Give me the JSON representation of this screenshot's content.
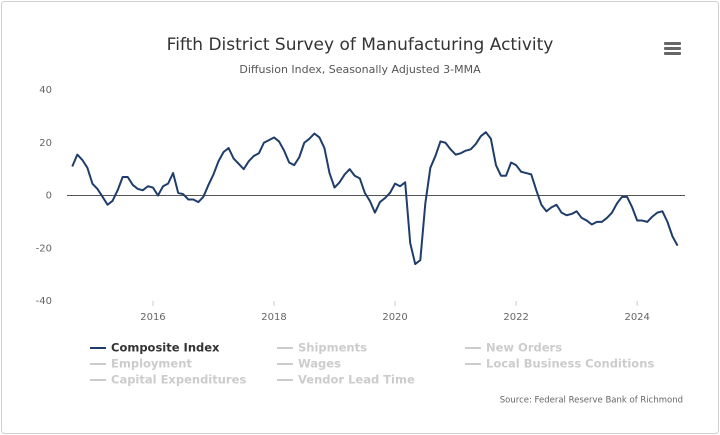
{
  "chart_data": {
    "type": "line",
    "title": "Fifth District Survey of Manufacturing Activity",
    "subtitle": "Diffusion Index, Seasonally Adjusted 3-MMA",
    "source": "Source: Federal Reserve Bank of Richmond",
    "x": [
      2014.667,
      2014.75,
      2014.833,
      2014.917,
      2015,
      2015.083,
      2015.167,
      2015.25,
      2015.333,
      2015.417,
      2015.5,
      2015.583,
      2015.667,
      2015.75,
      2015.833,
      2015.917,
      2016,
      2016.083,
      2016.167,
      2016.25,
      2016.333,
      2016.417,
      2016.5,
      2016.583,
      2016.667,
      2016.75,
      2016.833,
      2016.917,
      2017,
      2017.083,
      2017.167,
      2017.25,
      2017.333,
      2017.417,
      2017.5,
      2017.583,
      2017.667,
      2017.75,
      2017.833,
      2017.917,
      2018,
      2018.083,
      2018.167,
      2018.25,
      2018.333,
      2018.417,
      2018.5,
      2018.583,
      2018.667,
      2018.75,
      2018.833,
      2018.917,
      2019,
      2019.083,
      2019.167,
      2019.25,
      2019.333,
      2019.417,
      2019.5,
      2019.583,
      2019.667,
      2019.75,
      2019.833,
      2019.917,
      2020,
      2020.083,
      2020.167,
      2020.25,
      2020.333,
      2020.417,
      2020.5,
      2020.583,
      2020.667,
      2020.75,
      2020.833,
      2020.917,
      2021,
      2021.083,
      2021.167,
      2021.25,
      2021.333,
      2021.417,
      2021.5,
      2021.583,
      2021.667,
      2021.75,
      2021.833,
      2021.917,
      2022,
      2022.083,
      2022.167,
      2022.25,
      2022.333,
      2022.417,
      2022.5,
      2022.583,
      2022.667,
      2022.75,
      2022.833,
      2022.917,
      2023,
      2023.083,
      2023.167,
      2023.25,
      2023.333,
      2023.417,
      2023.5,
      2023.583,
      2023.667,
      2023.75,
      2023.833,
      2023.917,
      2024,
      2024.083,
      2024.167,
      2024.25,
      2024.333,
      2024.417,
      2024.5,
      2024.583,
      2024.667
    ],
    "series": [
      {
        "name": "Composite Index",
        "color": "#1f3d6b",
        "visible": true,
        "values": [
          11,
          15.5,
          13.5,
          10.5,
          4.5,
          2.5,
          -0.5,
          -3.5,
          -2,
          2,
          7,
          7,
          4,
          2.5,
          2,
          3.5,
          3,
          0,
          3.5,
          4.5,
          8.5,
          1,
          0.5,
          -1.5,
          -1.5,
          -2.5,
          -0.5,
          4,
          8,
          13,
          16.5,
          18,
          14,
          12,
          10,
          13,
          15,
          16,
          20,
          21,
          22,
          20.5,
          17,
          12.5,
          11.5,
          14.5,
          20,
          21.5,
          23.5,
          22,
          18,
          8.5,
          3,
          5,
          8,
          10,
          7.5,
          6.5,
          1,
          -2,
          -6.5,
          -2.5,
          -1,
          1,
          4.5,
          3.5,
          5,
          -18,
          -26,
          -24.5,
          -3,
          10.5,
          15,
          20.5,
          20,
          17.5,
          15.5,
          16,
          17,
          17.5,
          19.5,
          22.5,
          24,
          21.5,
          11.5,
          7.5,
          7.5,
          12.5,
          11.5,
          9,
          8.5,
          8,
          2,
          -3.5,
          -6,
          -4.5,
          -3.5,
          -6.5,
          -7.5,
          -7,
          -6,
          -8.5,
          -9.5,
          -11,
          -10,
          -10,
          -8.5,
          -6.5,
          -3,
          -0.5,
          -0.5,
          -4.5,
          -9.5,
          -9.5,
          -10,
          -8,
          -6.5,
          -6,
          -10,
          -15.5,
          -19
        ]
      },
      {
        "name": "Shipments",
        "color": "#cccccc",
        "visible": false
      },
      {
        "name": "New Orders",
        "color": "#cccccc",
        "visible": false
      },
      {
        "name": "Employment",
        "color": "#cccccc",
        "visible": false
      },
      {
        "name": "Wages",
        "color": "#cccccc",
        "visible": false
      },
      {
        "name": "Local Business Conditions",
        "color": "#cccccc",
        "visible": false
      },
      {
        "name": "Capital Expenditures",
        "color": "#cccccc",
        "visible": false
      },
      {
        "name": "Vendor Lead Time",
        "color": "#cccccc",
        "visible": false
      }
    ],
    "xlim": [
      2014.58,
      2024.79
    ],
    "xticks": [
      2016,
      2018,
      2020,
      2022,
      2024
    ],
    "ylim": [
      -40,
      40
    ],
    "yticks": [
      -40,
      -20,
      0,
      20,
      40
    ],
    "zero_line": true,
    "legend": "bottom"
  }
}
